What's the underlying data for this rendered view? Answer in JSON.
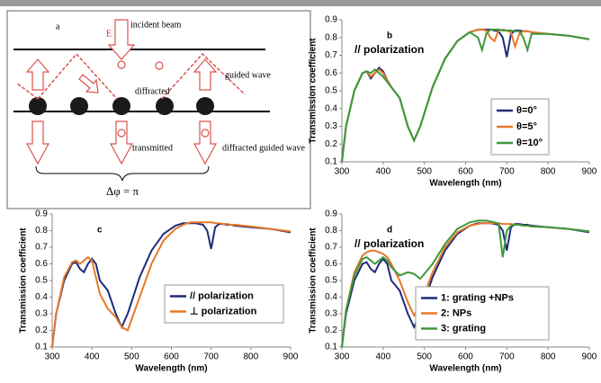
{
  "diagram": {
    "label": "a",
    "field": "E",
    "incident": "incident beam",
    "guided": "guided wave",
    "diffracted": "diffracted",
    "transmitted": "transmitted",
    "diffracted_guided": "diffracted guided wave",
    "phase": "Δφ = π"
  },
  "chart_data": [
    {
      "type": "line",
      "label": "b",
      "annotation": "// polarization",
      "xlabel": "Wavelength (nm)",
      "ylabel": "Transmission coefficient",
      "legend": "lower-right",
      "xlim": [
        300,
        900
      ],
      "xticks": [
        300,
        400,
        500,
        600,
        700,
        800,
        900
      ],
      "ylim": [
        0.1,
        0.9
      ],
      "yticks": [
        0.1,
        0.2,
        0.3,
        0.4,
        0.5,
        0.6,
        0.7,
        0.8,
        0.9
      ],
      "x": [
        300,
        310,
        330,
        350,
        360,
        370,
        380,
        390,
        400,
        410,
        420,
        440,
        460,
        475,
        490,
        520,
        550,
        580,
        610,
        630,
        640,
        650,
        660,
        670,
        680,
        690,
        700,
        710,
        720,
        730,
        740,
        750,
        760,
        800,
        850,
        900
      ],
      "series": [
        {
          "name": "θ=0°",
          "color": "#1f2a7a",
          "values": [
            0.1,
            0.3,
            0.5,
            0.6,
            0.61,
            0.57,
            0.6,
            0.63,
            0.61,
            0.56,
            0.52,
            0.46,
            0.3,
            0.22,
            0.3,
            0.52,
            0.68,
            0.78,
            0.83,
            0.845,
            0.845,
            0.845,
            0.845,
            0.84,
            0.835,
            0.8,
            0.69,
            0.82,
            0.84,
            0.84,
            0.835,
            0.835,
            0.83,
            0.82,
            0.81,
            0.79
          ]
        },
        {
          "name": "θ=5°",
          "color": "#e8782a",
          "values": [
            0.1,
            0.3,
            0.5,
            0.6,
            0.61,
            0.58,
            0.6,
            0.62,
            0.6,
            0.56,
            0.52,
            0.46,
            0.3,
            0.22,
            0.3,
            0.52,
            0.68,
            0.78,
            0.83,
            0.845,
            0.845,
            0.84,
            0.8,
            0.78,
            0.84,
            0.845,
            0.84,
            0.83,
            0.75,
            0.82,
            0.835,
            0.835,
            0.83,
            0.82,
            0.81,
            0.79
          ]
        },
        {
          "name": "θ=10°",
          "color": "#3b9a3b",
          "values": [
            0.1,
            0.3,
            0.5,
            0.6,
            0.61,
            0.6,
            0.62,
            0.6,
            0.58,
            0.55,
            0.52,
            0.46,
            0.3,
            0.22,
            0.3,
            0.52,
            0.68,
            0.78,
            0.83,
            0.8,
            0.73,
            0.82,
            0.845,
            0.845,
            0.845,
            0.84,
            0.84,
            0.84,
            0.835,
            0.835,
            0.8,
            0.73,
            0.82,
            0.82,
            0.81,
            0.79
          ]
        }
      ]
    },
    {
      "type": "line",
      "label": "c",
      "xlabel": "Wavelength (nm)",
      "ylabel": "Transmission coefficient",
      "legend": "center-right",
      "xlim": [
        300,
        900
      ],
      "xticks": [
        300,
        400,
        500,
        600,
        700,
        800,
        900
      ],
      "ylim": [
        0.1,
        0.9
      ],
      "yticks": [
        0.1,
        0.2,
        0.3,
        0.4,
        0.5,
        0.6,
        0.7,
        0.8,
        0.9
      ],
      "x": [
        300,
        310,
        330,
        350,
        360,
        370,
        380,
        390,
        400,
        410,
        420,
        440,
        460,
        475,
        490,
        520,
        550,
        580,
        610,
        630,
        640,
        650,
        660,
        670,
        680,
        690,
        700,
        710,
        720,
        730,
        740,
        750,
        760,
        800,
        850,
        900
      ],
      "series": [
        {
          "name": "// polarization",
          "color": "#1f2a7a",
          "values": [
            0.1,
            0.3,
            0.5,
            0.6,
            0.61,
            0.57,
            0.55,
            0.6,
            0.63,
            0.6,
            0.5,
            0.44,
            0.3,
            0.22,
            0.3,
            0.52,
            0.68,
            0.78,
            0.83,
            0.845,
            0.845,
            0.845,
            0.845,
            0.84,
            0.835,
            0.8,
            0.69,
            0.82,
            0.84,
            0.84,
            0.835,
            0.835,
            0.83,
            0.82,
            0.81,
            0.79
          ]
        },
        {
          "name": "⊥ polarization",
          "color": "#e8782a",
          "values": [
            0.1,
            0.3,
            0.52,
            0.61,
            0.62,
            0.6,
            0.62,
            0.64,
            0.62,
            0.52,
            0.42,
            0.33,
            0.28,
            0.22,
            0.2,
            0.4,
            0.6,
            0.74,
            0.81,
            0.835,
            0.845,
            0.85,
            0.85,
            0.85,
            0.85,
            0.85,
            0.85,
            0.845,
            0.845,
            0.84,
            0.84,
            0.835,
            0.835,
            0.825,
            0.81,
            0.795
          ]
        }
      ]
    },
    {
      "type": "line",
      "label": "d",
      "annotation": "// polarization",
      "xlabel": "Wavelength (nm)",
      "ylabel": "Transmission coefficient",
      "legend": "lower-right",
      "xlim": [
        300,
        900
      ],
      "xticks": [
        300,
        400,
        500,
        600,
        700,
        800,
        900
      ],
      "ylim": [
        0.1,
        0.9
      ],
      "yticks": [
        0.1,
        0.2,
        0.3,
        0.4,
        0.5,
        0.6,
        0.7,
        0.8,
        0.9
      ],
      "x": [
        300,
        310,
        330,
        350,
        360,
        370,
        380,
        390,
        400,
        410,
        420,
        440,
        460,
        475,
        490,
        520,
        550,
        580,
        610,
        630,
        640,
        650,
        660,
        670,
        680,
        690,
        700,
        710,
        720,
        730,
        740,
        750,
        760,
        800,
        850,
        900
      ],
      "series": [
        {
          "name": "1: grating +NPs",
          "color": "#1f2a7a",
          "values": [
            0.1,
            0.3,
            0.5,
            0.6,
            0.61,
            0.57,
            0.55,
            0.6,
            0.63,
            0.6,
            0.5,
            0.44,
            0.3,
            0.22,
            0.3,
            0.52,
            0.68,
            0.78,
            0.83,
            0.845,
            0.845,
            0.845,
            0.845,
            0.84,
            0.835,
            0.8,
            0.68,
            0.82,
            0.84,
            0.84,
            0.835,
            0.835,
            0.83,
            0.82,
            0.81,
            0.79
          ]
        },
        {
          "name": "2: NPs",
          "color": "#e8782a",
          "values": [
            0.1,
            0.32,
            0.55,
            0.65,
            0.67,
            0.68,
            0.68,
            0.67,
            0.66,
            0.64,
            0.6,
            0.5,
            0.37,
            0.29,
            0.35,
            0.55,
            0.7,
            0.79,
            0.83,
            0.84,
            0.845,
            0.845,
            0.845,
            0.845,
            0.845,
            0.84,
            0.84,
            0.84,
            0.835,
            0.835,
            0.83,
            0.83,
            0.825,
            0.82,
            0.81,
            0.795
          ]
        },
        {
          "name": "3: grating",
          "color": "#3b9a3b",
          "values": [
            0.1,
            0.32,
            0.53,
            0.63,
            0.64,
            0.62,
            0.6,
            0.62,
            0.64,
            0.62,
            0.58,
            0.53,
            0.55,
            0.54,
            0.51,
            0.6,
            0.72,
            0.81,
            0.85,
            0.86,
            0.86,
            0.86,
            0.855,
            0.85,
            0.84,
            0.64,
            0.8,
            0.83,
            0.835,
            0.835,
            0.83,
            0.83,
            0.825,
            0.82,
            0.81,
            0.795
          ]
        }
      ]
    }
  ]
}
